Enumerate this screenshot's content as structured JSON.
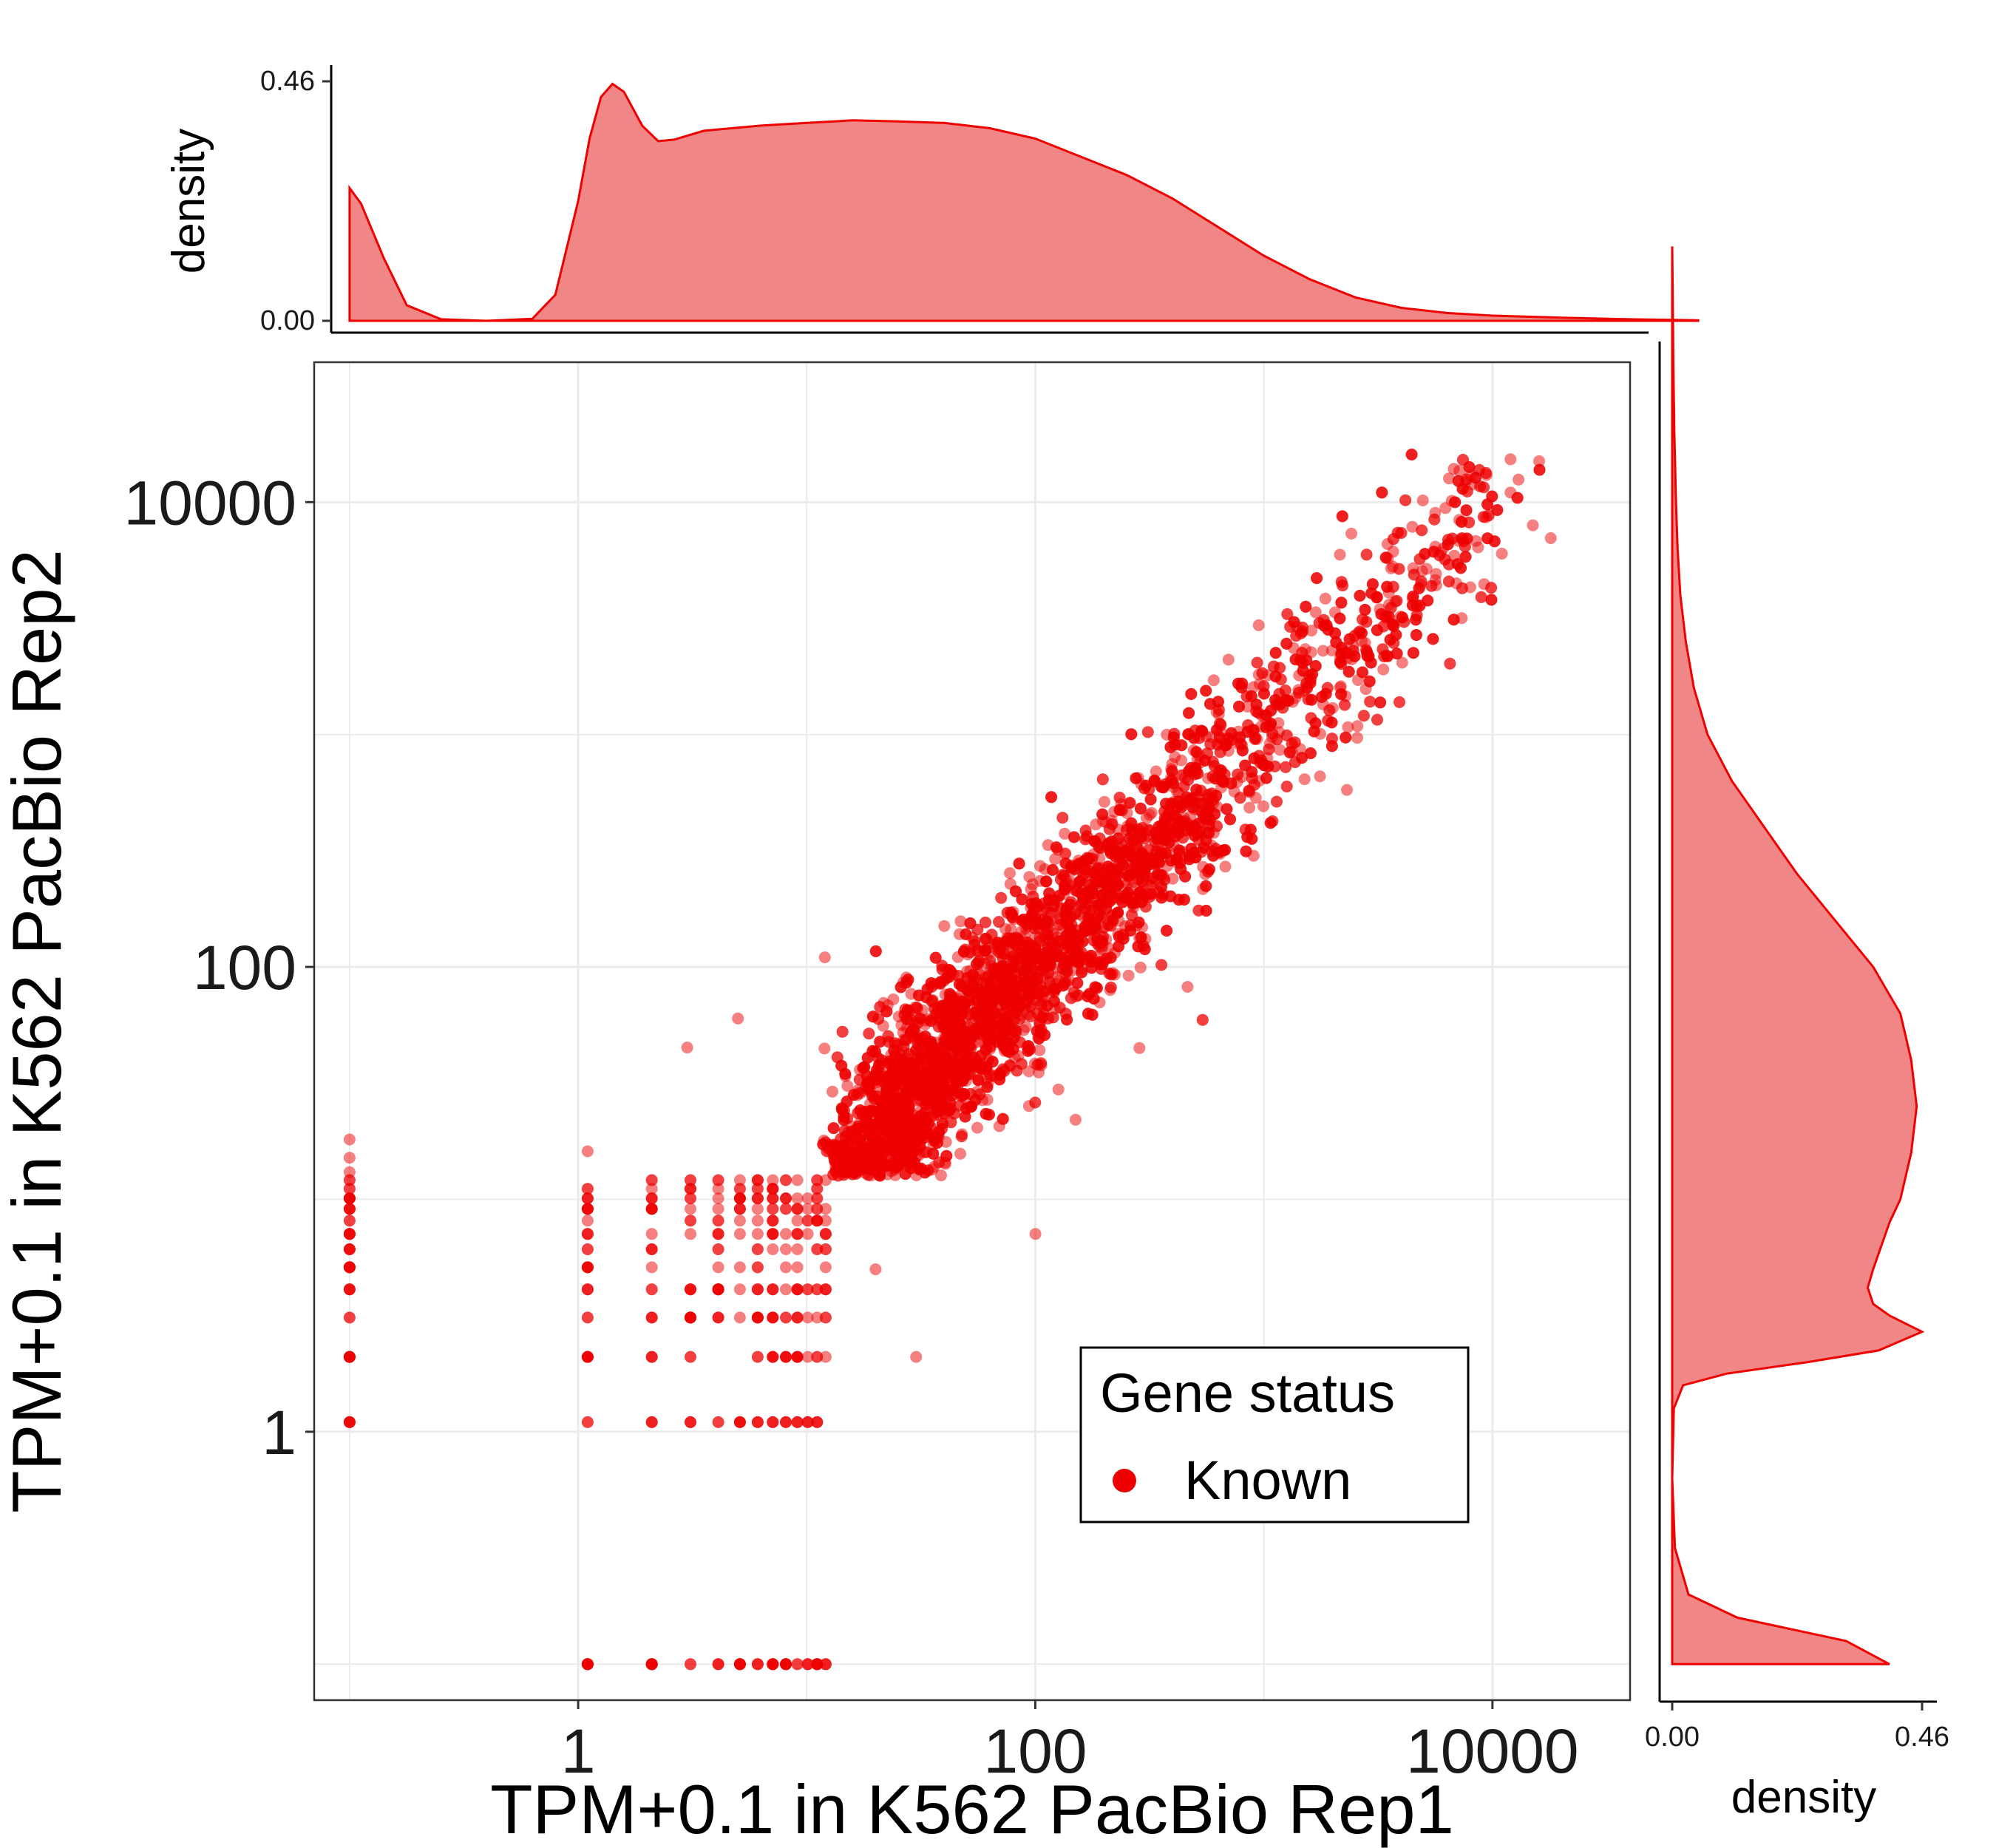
{
  "chart_data": {
    "type": "scatter",
    "title": "",
    "xlabel": "TPM+0.1 in K562 PacBio Rep1",
    "ylabel": "TPM+0.1 in K562 PacBio Rep2",
    "x_scale": "log10",
    "y_scale": "log10",
    "xlim": [
      0.07,
      40000
    ],
    "ylim": [
      0.07,
      40000
    ],
    "x_ticks": [
      "1",
      "100",
      "10000"
    ],
    "y_ticks": [
      "1",
      "100",
      "10000"
    ],
    "grid": true,
    "point_color": "#EE0000",
    "point_opacity": 0.5,
    "legend": {
      "title": "Gene status",
      "position": "inside-bottom-right",
      "entries": [
        {
          "label": "Known",
          "color": "#EE0000"
        }
      ]
    },
    "series": [
      {
        "name": "Known",
        "note_n": 18000,
        "discrete_levels": [
          0.1,
          1.1,
          2.1,
          3.1,
          4.1,
          5.1,
          6.1,
          7.1,
          8.1,
          9.1,
          10.1,
          11.1,
          12.1
        ],
        "points": [
          {
            "x": 0.1,
            "y": 2.1
          },
          {
            "x": 0.1,
            "y": 4.1
          },
          {
            "x": 0.1,
            "y": 6.1
          },
          {
            "x": 0.1,
            "y": 8.1
          },
          {
            "x": 0.1,
            "y": 10.1
          },
          {
            "x": 0.1,
            "y": 13.1
          },
          {
            "x": 0.1,
            "y": 15.1
          },
          {
            "x": 0.1,
            "y": 18.1
          },
          {
            "x": 1.1,
            "y": 0.1
          },
          {
            "x": 1.1,
            "y": 2.1
          },
          {
            "x": 1.1,
            "y": 4.1
          },
          {
            "x": 1.1,
            "y": 6.1
          },
          {
            "x": 1.1,
            "y": 10.1
          },
          {
            "x": 1.1,
            "y": 16.1
          },
          {
            "x": 30.1,
            "y": 2.1
          },
          {
            "x": 12.1,
            "y": 2.1
          },
          {
            "x": 100.1,
            "y": 7.1
          },
          {
            "x": 20,
            "y": 5
          },
          {
            "x": 150,
            "y": 22
          },
          {
            "x": 60,
            "y": 120
          },
          {
            "x": 40,
            "y": 150
          },
          {
            "x": 12,
            "y": 110
          },
          {
            "x": 5,
            "y": 60
          },
          {
            "x": 3,
            "y": 45
          },
          {
            "x": 900,
            "y": 1600
          },
          {
            "x": 700,
            "y": 2100
          },
          {
            "x": 2000,
            "y": 1300
          },
          {
            "x": 4500,
            "y": 5200
          },
          {
            "x": 12000,
            "y": 11000
          },
          {
            "x": 16000,
            "y": 15000
          },
          {
            "x": 13000,
            "y": 12500
          },
          {
            "x": 18000,
            "y": 7000
          },
          {
            "x": 11000,
            "y": 6000
          },
          {
            "x": 8000,
            "y": 4300
          }
        ]
      }
    ],
    "marginal_density": {
      "x": {
        "ylabel": "density",
        "ylim": [
          0,
          0.46
        ],
        "y_ticks": [
          "0.00",
          "0.46"
        ],
        "curve": [
          [
            -1.0,
            0.255
          ],
          [
            -0.95,
            0.225
          ],
          [
            -0.85,
            0.12
          ],
          [
            -0.75,
            0.03
          ],
          [
            -0.6,
            0.003
          ],
          [
            -0.4,
            0.0
          ],
          [
            -0.2,
            0.004
          ],
          [
            -0.1,
            0.05
          ],
          [
            0.0,
            0.23
          ],
          [
            0.05,
            0.35
          ],
          [
            0.1,
            0.43
          ],
          [
            0.15,
            0.455
          ],
          [
            0.2,
            0.44
          ],
          [
            0.28,
            0.375
          ],
          [
            0.35,
            0.345
          ],
          [
            0.42,
            0.348
          ],
          [
            0.55,
            0.365
          ],
          [
            0.8,
            0.375
          ],
          [
            1.0,
            0.38
          ],
          [
            1.2,
            0.385
          ],
          [
            1.4,
            0.383
          ],
          [
            1.6,
            0.38
          ],
          [
            1.8,
            0.37
          ],
          [
            2.0,
            0.35
          ],
          [
            2.2,
            0.315
          ],
          [
            2.4,
            0.28
          ],
          [
            2.6,
            0.235
          ],
          [
            2.8,
            0.18
          ],
          [
            3.0,
            0.125
          ],
          [
            3.2,
            0.08
          ],
          [
            3.4,
            0.045
          ],
          [
            3.6,
            0.025
          ],
          [
            3.8,
            0.015
          ],
          [
            4.0,
            0.01
          ],
          [
            4.3,
            0.006
          ],
          [
            4.6,
            0.003
          ],
          [
            4.9,
            0.001
          ]
        ]
      },
      "y": {
        "xlabel": "density",
        "xlim": [
          0,
          0.46
        ],
        "x_ticks": [
          "0.00",
          "0.46"
        ],
        "curve": [
          [
            -1.0,
            0.4
          ],
          [
            -0.9,
            0.32
          ],
          [
            -0.8,
            0.12
          ],
          [
            -0.7,
            0.03
          ],
          [
            -0.5,
            0.005
          ],
          [
            -0.2,
            0.0
          ],
          [
            0.1,
            0.003
          ],
          [
            0.2,
            0.02
          ],
          [
            0.25,
            0.1
          ],
          [
            0.3,
            0.25
          ],
          [
            0.35,
            0.38
          ],
          [
            0.43,
            0.46
          ],
          [
            0.5,
            0.4
          ],
          [
            0.55,
            0.37
          ],
          [
            0.62,
            0.36
          ],
          [
            0.7,
            0.37
          ],
          [
            0.8,
            0.385
          ],
          [
            0.9,
            0.4
          ],
          [
            1.0,
            0.42
          ],
          [
            1.2,
            0.44
          ],
          [
            1.4,
            0.45
          ],
          [
            1.6,
            0.44
          ],
          [
            1.8,
            0.42
          ],
          [
            2.0,
            0.37
          ],
          [
            2.2,
            0.3
          ],
          [
            2.4,
            0.23
          ],
          [
            2.6,
            0.17
          ],
          [
            2.8,
            0.11
          ],
          [
            3.0,
            0.065
          ],
          [
            3.2,
            0.04
          ],
          [
            3.4,
            0.025
          ],
          [
            3.6,
            0.015
          ],
          [
            3.8,
            0.01
          ],
          [
            4.0,
            0.007
          ],
          [
            4.3,
            0.004
          ],
          [
            4.6,
            0.002
          ],
          [
            4.9,
            0.001
          ],
          [
            5.1,
            0.0
          ]
        ]
      }
    }
  }
}
